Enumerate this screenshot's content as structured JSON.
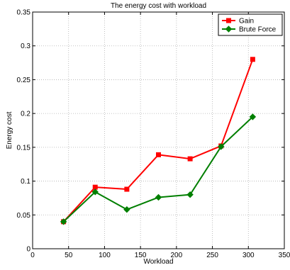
{
  "chart_data": {
    "type": "line",
    "title": "The energy cost with workload",
    "xlabel": "Workload",
    "ylabel": "Energy cost",
    "xlim": [
      0,
      350
    ],
    "ylim": [
      0,
      0.35
    ],
    "xticks": [
      0,
      50,
      100,
      150,
      200,
      250,
      300,
      350
    ],
    "yticks": [
      0,
      0.05,
      0.1,
      0.15,
      0.2,
      0.25,
      0.3,
      0.35
    ],
    "xtick_labels": [
      "0",
      "50",
      "100",
      "150",
      "200",
      "250",
      "300",
      "350"
    ],
    "ytick_labels": [
      "0",
      "0.05",
      "0.1",
      "0.15",
      "0.2",
      "0.25",
      "0.3",
      "0.35"
    ],
    "grid": true,
    "legend_position": "top-right",
    "x": [
      43,
      87,
      131,
      175,
      219,
      262,
      306
    ],
    "series": [
      {
        "name": "Gain",
        "color": "#ff0000",
        "marker": "square",
        "values": [
          0.04,
          0.091,
          0.088,
          0.139,
          0.133,
          0.152,
          0.28
        ]
      },
      {
        "name": "Brute Force",
        "color": "#007f00",
        "marker": "diamond",
        "values": [
          0.04,
          0.084,
          0.058,
          0.076,
          0.08,
          0.151,
          0.195
        ]
      }
    ]
  }
}
